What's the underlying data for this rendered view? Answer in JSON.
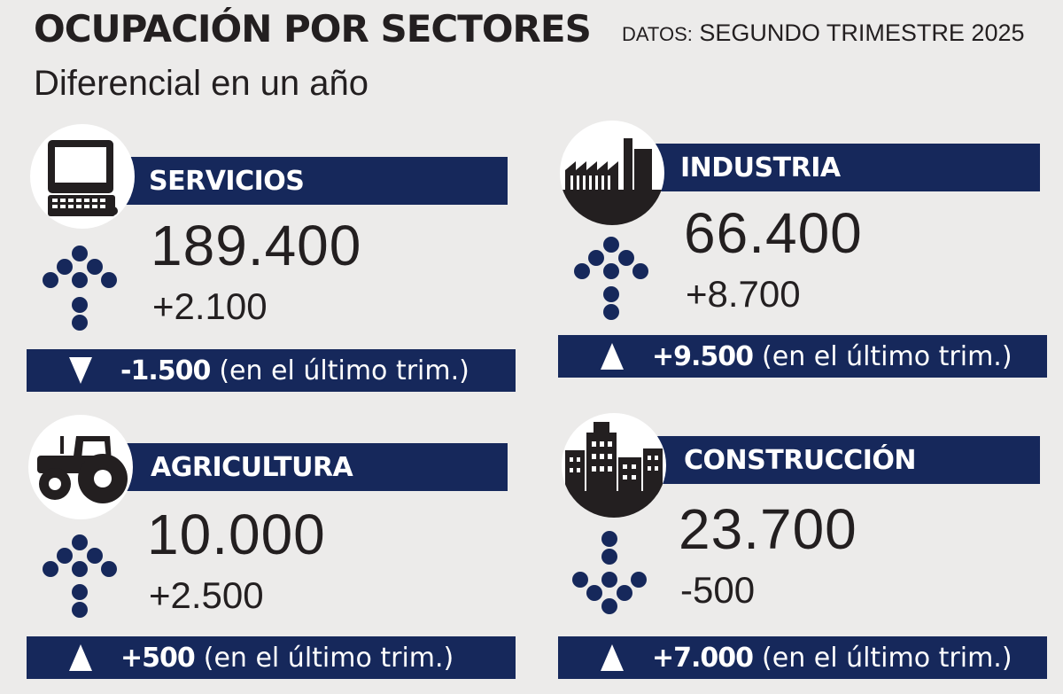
{
  "header": {
    "title": "OCUPACIÓN POR SECTORES",
    "source_prefix": "DATOS:",
    "source_period": "SEGUNDO TRIMESTRE 2025",
    "subtitle": "Diferencial en un año"
  },
  "colors": {
    "navy": "#16285b",
    "dark": "#231f20",
    "background": "#ecebea"
  },
  "sectors": [
    {
      "name": "SERVICIOS",
      "icon": "computer-icon",
      "total": "189.400",
      "annual_diff": "+2.100",
      "annual_trend": "up",
      "quarter_diff": "-1.500",
      "quarter_trend": "down",
      "quarter_text": "(en el último trim.)"
    },
    {
      "name": "INDUSTRIA",
      "icon": "factory-icon",
      "total": "66.400",
      "annual_diff": "+8.700",
      "annual_trend": "up",
      "quarter_diff": "+9.500",
      "quarter_trend": "up",
      "quarter_text": "(en el último trim.)"
    },
    {
      "name": "AGRICULTURA",
      "icon": "tractor-icon",
      "total": "10.000",
      "annual_diff": "+2.500",
      "annual_trend": "up",
      "quarter_diff": "+500",
      "quarter_trend": "up",
      "quarter_text": "(en el último trim.)"
    },
    {
      "name": "CONSTRUCCIÓN",
      "icon": "buildings-icon",
      "total": "23.700",
      "annual_diff": "-500",
      "annual_trend": "down",
      "quarter_diff": "+7.000",
      "quarter_trend": "up",
      "quarter_text": "(en el último trim.)"
    }
  ]
}
